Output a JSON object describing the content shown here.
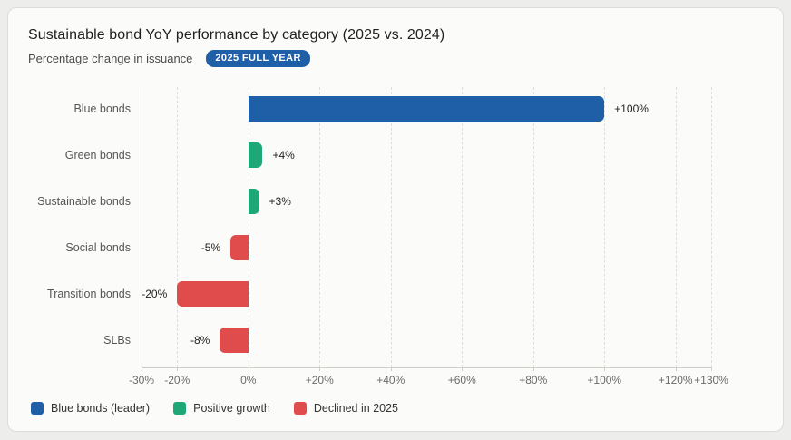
{
  "card": {
    "title": "Sustainable bond YoY performance by category (2025 vs. 2024)",
    "subtitle": "Percentage change in issuance",
    "badge": "2025 FULL YEAR"
  },
  "colors": {
    "blue": "#1f5fa8",
    "green": "#1ea878",
    "red": "#e04c4c",
    "badge_bg": "#1f5fa8"
  },
  "chart_data": {
    "type": "bar",
    "orientation": "horizontal",
    "title": "Sustainable bond YoY performance by category (2025 vs. 2024)",
    "subtitle": "Percentage change in issuance",
    "categories": [
      "Blue bonds",
      "Green bonds",
      "Sustainable bonds",
      "Social bonds",
      "Transition bonds",
      "SLBs"
    ],
    "values": [
      100,
      4,
      3,
      -5,
      -20,
      -8
    ],
    "value_labels": [
      "+100%",
      "+4%",
      "+3%",
      "-5%",
      "-20%",
      "-8%"
    ],
    "bar_colors": [
      "#1f5fa8",
      "#1ea878",
      "#1ea878",
      "#e04c4c",
      "#e04c4c",
      "#e04c4c"
    ],
    "xlim": [
      -30,
      130
    ],
    "x_ticks": [
      -30,
      -20,
      0,
      20,
      40,
      60,
      80,
      100,
      120,
      130
    ],
    "x_tick_labels": [
      "-30%",
      "-20%",
      "0%",
      "+20%",
      "+40%",
      "+60%",
      "+80%",
      "+100%",
      "+120%",
      "+130%"
    ],
    "grid": "vertical-dashed",
    "legend_position": "bottom-left",
    "legend": [
      {
        "label": "Blue bonds (leader)",
        "color": "#1f5fa8"
      },
      {
        "label": "Positive growth",
        "color": "#1ea878"
      },
      {
        "label": "Declined in 2025",
        "color": "#e04c4c"
      }
    ]
  }
}
